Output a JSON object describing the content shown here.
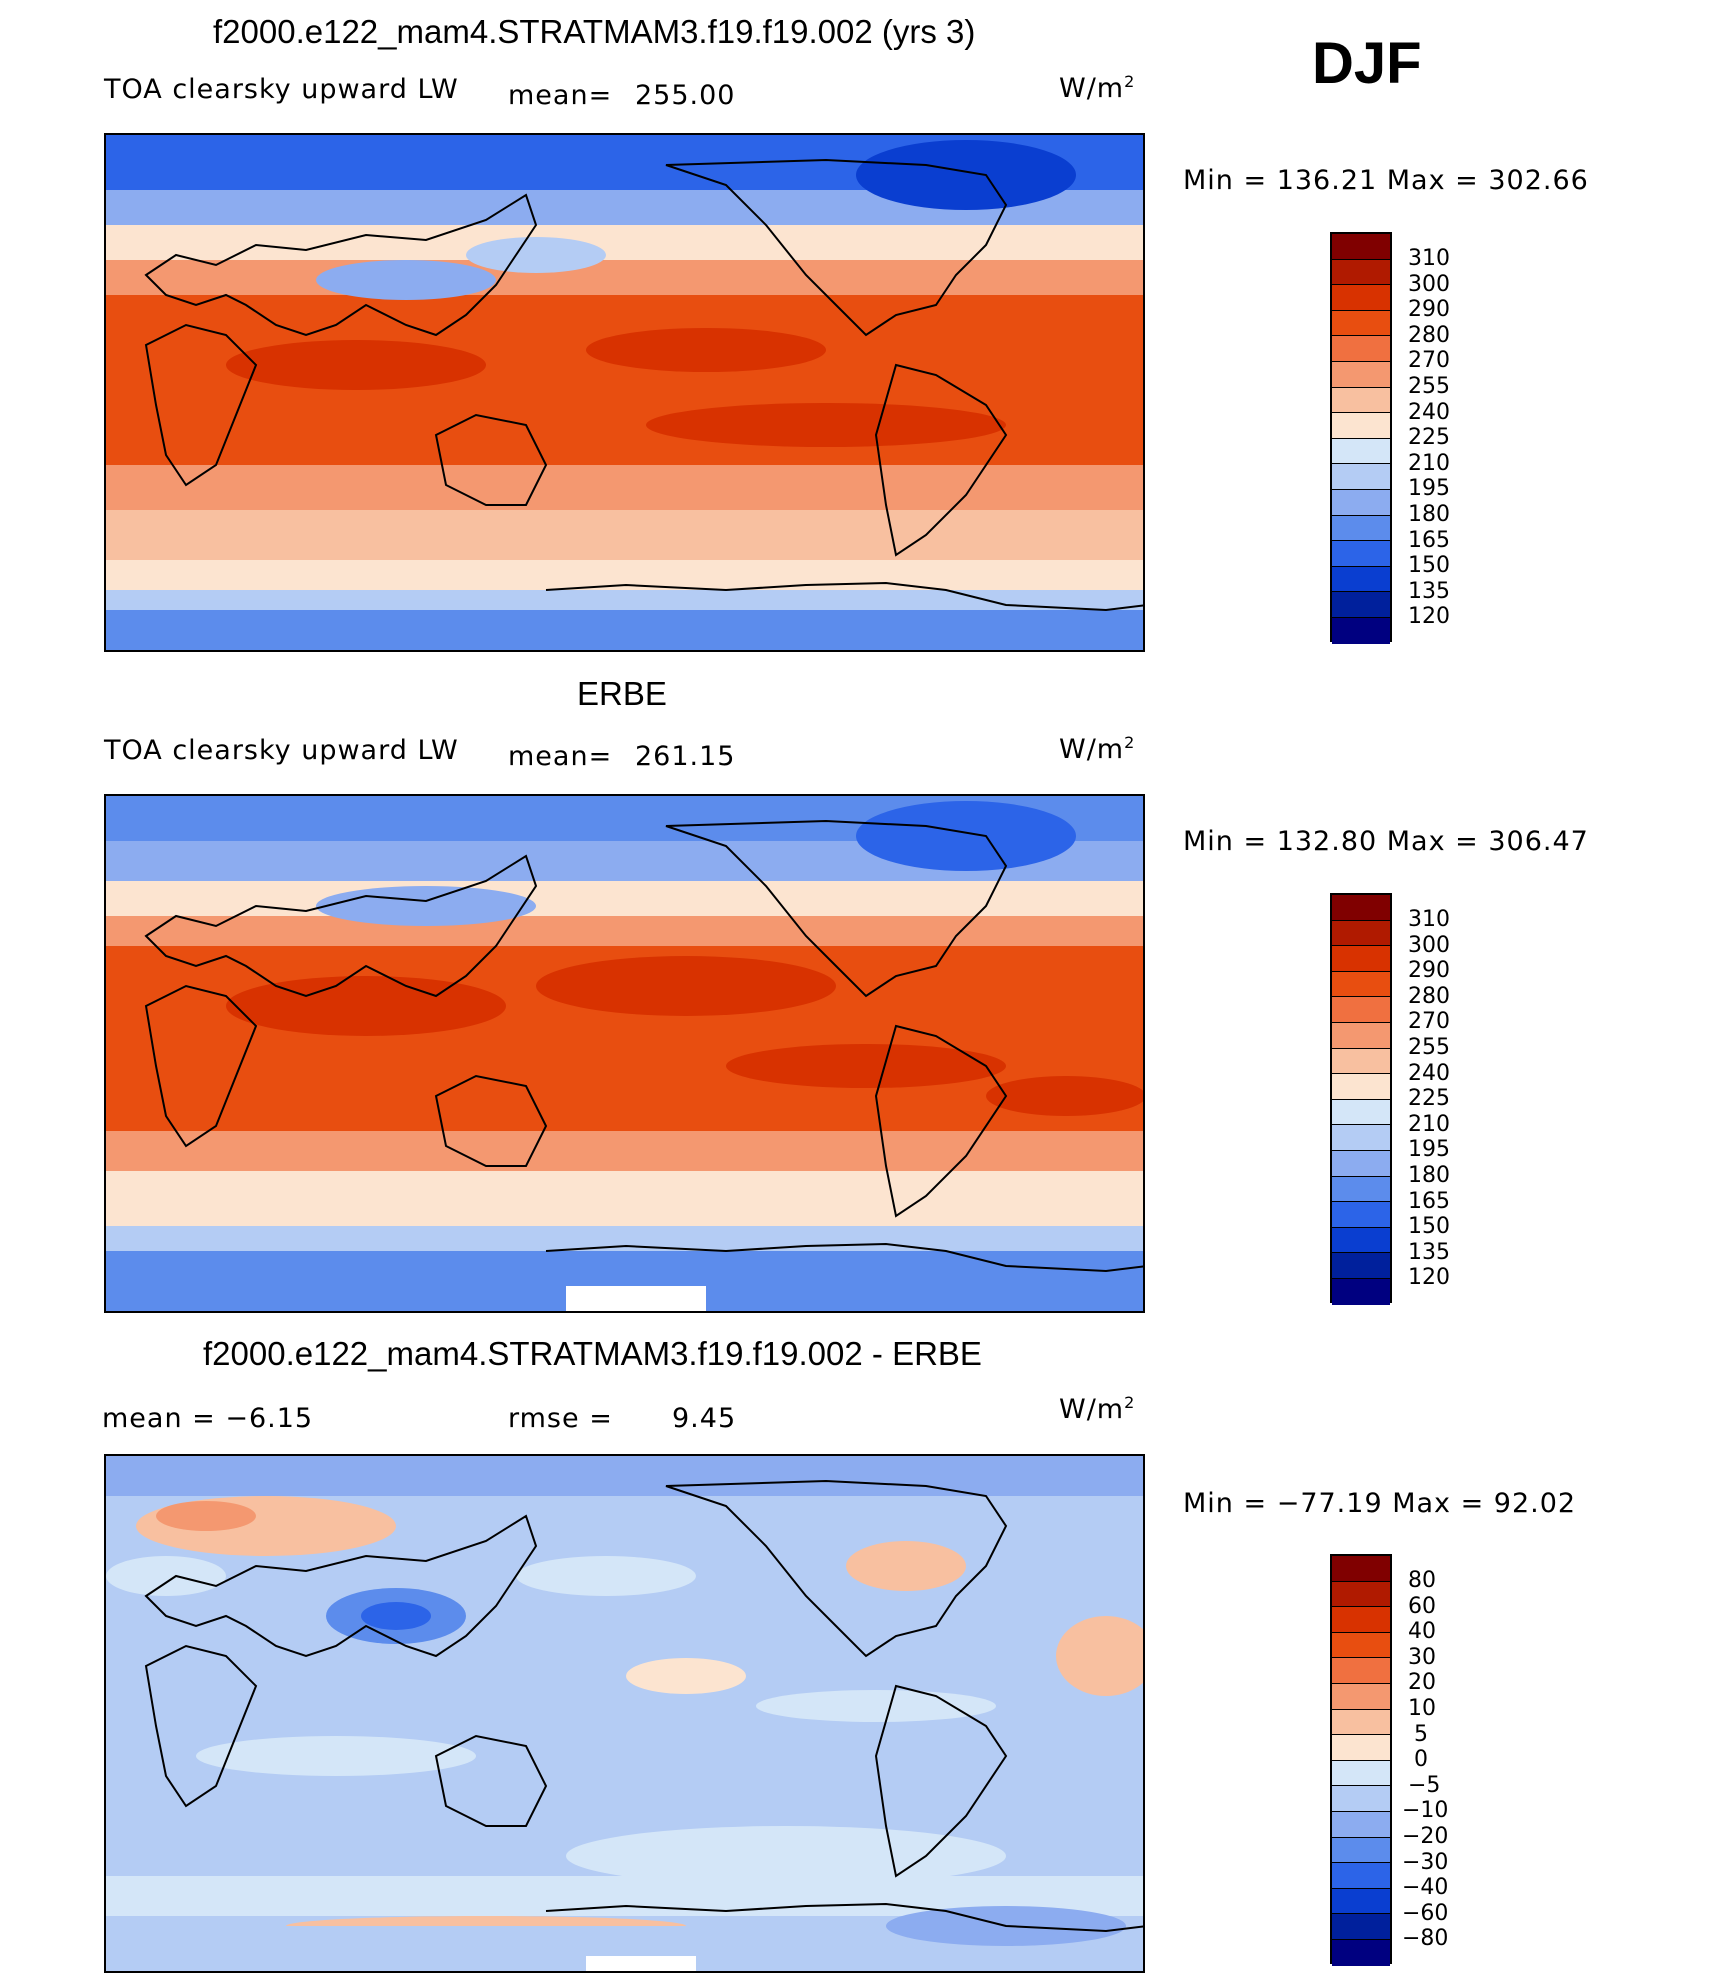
{
  "season": "DJF",
  "panels": [
    {
      "title": "f2000.e122_mam4.STRATMAM3.f19.f19.002 (yrs 3)",
      "left_label": "TOA clearsky upward LW",
      "stat_label": "mean=",
      "stat_value": "255.00",
      "units": "W/m",
      "units_sup": "2",
      "minmax": "Min  =  136.21  Max  =  302.66",
      "colorbar_ticks": [
        "310",
        "300",
        "290",
        "280",
        "270",
        "255",
        "240",
        "225",
        "210",
        "195",
        "180",
        "165",
        "150",
        "135",
        "120"
      ]
    },
    {
      "title": "ERBE",
      "left_label": "TOA clearsky upward LW",
      "stat_label": "mean=",
      "stat_value": "261.15",
      "units": "W/m",
      "units_sup": "2",
      "minmax": "Min  =  132.80  Max  =  306.47",
      "colorbar_ticks": [
        "310",
        "300",
        "290",
        "280",
        "270",
        "255",
        "240",
        "225",
        "210",
        "195",
        "180",
        "165",
        "150",
        "135",
        "120"
      ]
    },
    {
      "title": "f2000.e122_mam4.STRATMAM3.f19.f19.002 - ERBE",
      "left_label": "mean  =    −6.15",
      "stat_label": "rmse  =",
      "stat_value": "9.45",
      "units": "W/m",
      "units_sup": "2",
      "minmax": "Min  =  −77.19  Max  =    92.02",
      "colorbar_ticks": [
        "80",
        "60",
        "40",
        "30",
        "20",
        "10",
        "5",
        "0",
        "−5",
        "−10",
        "−20",
        "−30",
        "−40",
        "−60",
        "−80"
      ]
    }
  ],
  "colors": {
    "abs_scale": [
      "#800000",
      "#b01a00",
      "#d83200",
      "#e84e10",
      "#f07040",
      "#f49870",
      "#f8c0a0",
      "#fce4d0",
      "#d4e6f8",
      "#b4ccf4",
      "#8cacf0",
      "#5c8cec",
      "#2c64e8",
      "#0a3ed0",
      "#00209c",
      "#000080"
    ],
    "diff_scale": [
      "#800000",
      "#b01a00",
      "#d83200",
      "#e84e10",
      "#f07040",
      "#f49870",
      "#f8c0a0",
      "#fce4d0",
      "#d4e6f8",
      "#b4ccf4",
      "#8cacf0",
      "#5c8cec",
      "#2c64e8",
      "#0a3ed0",
      "#00209c",
      "#000080"
    ]
  }
}
